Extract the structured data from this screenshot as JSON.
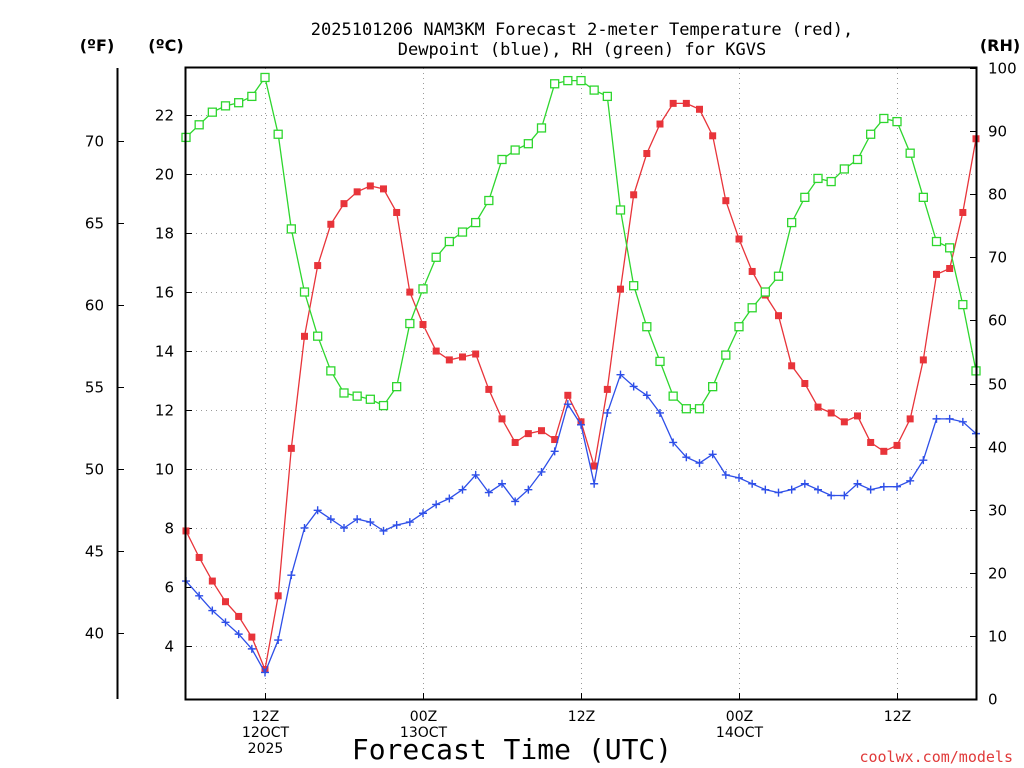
{
  "chart_data": {
    "type": "line",
    "title_line1": "2025101206 NAM3KM Forecast 2-meter Temperature (red),",
    "title_line2": "Dewpoint (blue), RH (green) for KGVS",
    "xlabel": "Forecast Time (UTC)",
    "credit": "coolwx.com/models",
    "unit_f": "(ºF)",
    "unit_c": "(ºC)",
    "unit_rh": "(RH)",
    "x_start_hour": 6,
    "x_end_hour": 66,
    "x_ticks": [
      {
        "hour": 12,
        "lines": [
          "12Z",
          "12OCT",
          "2025"
        ]
      },
      {
        "hour": 24,
        "lines": [
          "00Z",
          "13OCT"
        ]
      },
      {
        "hour": 36,
        "lines": [
          "12Z"
        ]
      },
      {
        "hour": 48,
        "lines": [
          "00Z",
          "14OCT"
        ]
      },
      {
        "hour": 60,
        "lines": [
          "12Z"
        ]
      }
    ],
    "celsius_axis": {
      "min": 2.2,
      "max": 23.6,
      "ticks": [
        4,
        6,
        8,
        10,
        12,
        14,
        16,
        18,
        20,
        22
      ]
    },
    "fahrenheit_ticks": [
      40,
      45,
      50,
      55,
      60,
      65,
      70
    ],
    "rh_axis": {
      "min": 0,
      "max": 100,
      "ticks": [
        0,
        10,
        20,
        30,
        40,
        50,
        60,
        70,
        80,
        90,
        100
      ]
    },
    "series": [
      {
        "name": "Temperature",
        "axis": "celsius",
        "color": "#e8343a",
        "marker": "filled-square",
        "values": [
          7.9,
          7.0,
          6.2,
          5.5,
          5.0,
          4.3,
          3.2,
          5.7,
          10.7,
          14.5,
          16.9,
          18.3,
          19.0,
          19.4,
          19.6,
          19.5,
          18.7,
          16.0,
          14.9,
          14.0,
          13.7,
          13.8,
          13.9,
          12.7,
          11.7,
          10.9,
          11.2,
          11.3,
          11.0,
          12.5,
          11.6,
          10.1,
          12.7,
          16.1,
          19.3,
          20.7,
          21.7,
          22.4,
          22.4,
          22.2,
          21.3,
          19.1,
          17.8,
          16.7,
          15.9,
          15.2,
          13.5,
          12.9,
          12.1,
          11.9,
          11.6,
          11.8,
          10.9,
          10.6,
          10.8,
          11.7,
          13.7,
          16.6,
          16.8,
          18.7,
          21.2
        ]
      },
      {
        "name": "Dewpoint",
        "axis": "celsius",
        "color": "#2e4fe8",
        "marker": "plus",
        "values": [
          6.2,
          5.7,
          5.2,
          4.8,
          4.4,
          3.9,
          3.1,
          4.2,
          6.4,
          8.0,
          8.6,
          8.3,
          8.0,
          8.3,
          8.2,
          7.9,
          8.1,
          8.2,
          8.5,
          8.8,
          9.0,
          9.3,
          9.8,
          9.2,
          9.5,
          8.9,
          9.3,
          9.9,
          10.6,
          12.2,
          11.5,
          9.5,
          11.9,
          13.2,
          12.8,
          12.5,
          11.9,
          10.9,
          10.4,
          10.2,
          10.5,
          9.8,
          9.7,
          9.5,
          9.3,
          9.2,
          9.3,
          9.5,
          9.3,
          9.1,
          9.1,
          9.5,
          9.3,
          9.4,
          9.4,
          9.6,
          10.3,
          11.7,
          11.7,
          11.6,
          11.2
        ]
      },
      {
        "name": "RH",
        "axis": "rh",
        "color": "#2ed62e",
        "marker": "open-square",
        "values": [
          89,
          91,
          93,
          94,
          94.5,
          95.5,
          98.5,
          89.5,
          74.5,
          64.5,
          57.5,
          52,
          48.5,
          48,
          47.5,
          46.5,
          49.5,
          59.5,
          65,
          70,
          72.5,
          74,
          75.5,
          79,
          85.5,
          87,
          88,
          90.5,
          97.5,
          98,
          98,
          96.5,
          95.5,
          77.5,
          65.5,
          59,
          53.5,
          48,
          46,
          46,
          49.5,
          54.5,
          59,
          62,
          64.5,
          67,
          75.5,
          79.5,
          82.5,
          82,
          84,
          85.5,
          89.5,
          92,
          91.5,
          86.5,
          79.5,
          72.5,
          71.5,
          62.5,
          52
        ]
      }
    ]
  }
}
